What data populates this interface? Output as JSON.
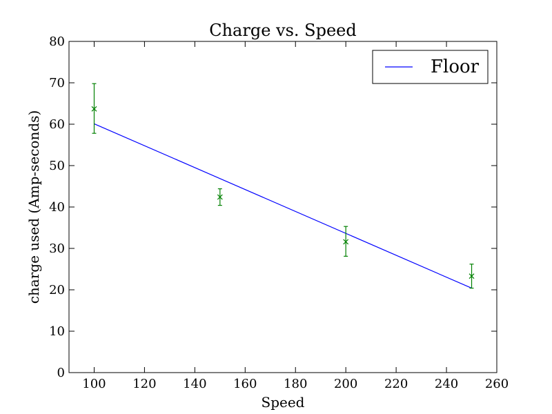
{
  "chart_data": {
    "type": "line",
    "title": "Charge vs. Speed",
    "xlabel": "Speed",
    "ylabel": "charge used (Amp-seconds)",
    "xlim": [
      90,
      260
    ],
    "ylim": [
      0,
      80
    ],
    "x_ticks": [
      "100",
      "120",
      "140",
      "160",
      "180",
      "200",
      "220",
      "240",
      "260"
    ],
    "y_ticks": [
      "0",
      "10",
      "20",
      "30",
      "40",
      "50",
      "60",
      "70",
      "80"
    ],
    "grid": false,
    "legend_position": "top-right",
    "series": [
      {
        "name": "Floor",
        "kind": "line",
        "color": "#0000ff",
        "x": [
          100,
          250
        ],
        "y": [
          60.1,
          20.4
        ]
      },
      {
        "kind": "errorbar",
        "marker": "x",
        "color": "#008000",
        "x": [
          100,
          150,
          200,
          250
        ],
        "y": [
          63.7,
          42.4,
          31.6,
          23.3
        ],
        "yerr_low": [
          5.9,
          2.0,
          3.5,
          2.9
        ],
        "yerr_high": [
          6.1,
          2.0,
          3.7,
          2.9
        ]
      }
    ]
  }
}
